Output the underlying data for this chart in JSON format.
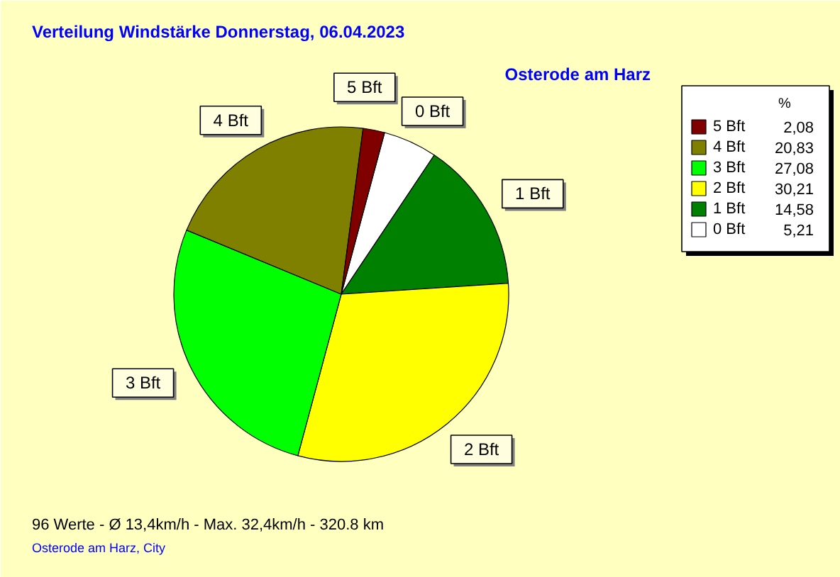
{
  "chart_data": {
    "type": "pie",
    "title": "Verteilung Windstärke  Donnerstag, 06.04.2023",
    "subtitle": "Osterode am Harz",
    "legend_title": "%",
    "categories": [
      "0 Bft",
      "1 Bft",
      "2 Bft",
      "3 Bft",
      "4 Bft",
      "5 Bft"
    ],
    "values": [
      5.21,
      14.58,
      30.21,
      27.08,
      20.83,
      2.08
    ],
    "value_labels": [
      "5,21",
      "14,58",
      "30,21",
      "27,08",
      "20,83",
      "2,08"
    ],
    "colors": [
      "#ffffff",
      "#008000",
      "#ffff00",
      "#00ff00",
      "#808000",
      "#800000"
    ],
    "legend": "top right",
    "annotations": [
      "96 Werte   -   Ø 13,4km/h  -  Max. 32,4km/h   -   320.8 km",
      "Osterode am Harz, City"
    ]
  }
}
